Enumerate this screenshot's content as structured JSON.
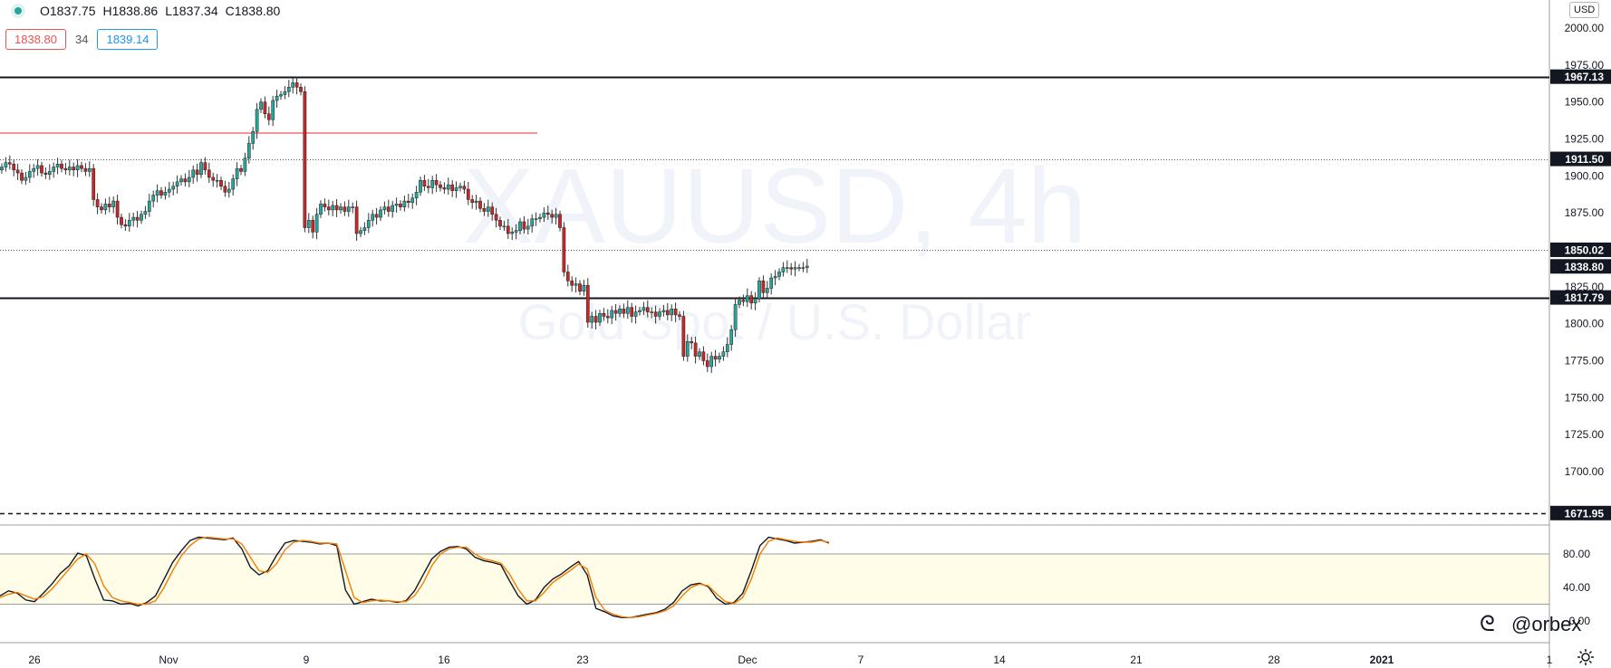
{
  "header": {
    "open": "O1837.75",
    "high": "H1838.86",
    "low": "L1837.34",
    "close": "C1838.80",
    "bid": "1838.80",
    "spread": "34",
    "ask": "1839.14",
    "currency": "USD"
  },
  "watermark": {
    "symbol": "XAUUSD, 4h",
    "name": "Gold Spot / U.S. Dollar"
  },
  "author": "@orbex",
  "colors": {
    "up": "#26a69a",
    "down": "#c62828",
    "kline": "#131722",
    "dline": "#f57c00",
    "band": "#fffde7"
  },
  "chart_data": [
    {
      "type": "candlestick",
      "title": "XAUUSD, 4h",
      "ylim": [
        1660,
        2012
      ],
      "y_ticks": [
        "2000.00",
        "1975.00",
        "1950.00",
        "1925.00",
        "1900.00",
        "1875.00",
        "1850.00",
        "1825.00",
        "1800.00",
        "1775.00",
        "1750.00",
        "1725.00",
        "1700.00"
      ],
      "x_ticks": [
        "26",
        "Nov",
        "9",
        "16",
        "23",
        "Dec",
        "7",
        "14",
        "21",
        "28",
        "2021",
        "1"
      ],
      "series": [
        {
          "name": "price",
          "values": [
            1906,
            1909,
            1908,
            1904,
            1902,
            1897,
            1899,
            1903,
            1905,
            1907,
            1902,
            1901,
            1903,
            1906,
            1908,
            1905,
            1904,
            1906,
            1904,
            1907,
            1905,
            1903,
            1905,
            1884,
            1879,
            1877,
            1881,
            1879,
            1883,
            1872,
            1867,
            1866,
            1870,
            1872,
            1870,
            1874,
            1876,
            1883,
            1887,
            1890,
            1887,
            1889,
            1891,
            1893,
            1896,
            1898,
            1896,
            1899,
            1904,
            1901,
            1909,
            1904,
            1899,
            1897,
            1897,
            1893,
            1889,
            1891,
            1898,
            1905,
            1903,
            1912,
            1922,
            1930,
            1945,
            1950,
            1942,
            1938,
            1951,
            1954,
            1955,
            1957,
            1960,
            1963,
            1960,
            1957,
            1865,
            1870,
            1862,
            1874,
            1881,
            1879,
            1877,
            1880,
            1877,
            1879,
            1876,
            1879,
            1879,
            1861,
            1863,
            1865,
            1870,
            1874,
            1872,
            1877,
            1879,
            1876,
            1880,
            1881,
            1879,
            1883,
            1882,
            1885,
            1889,
            1897,
            1893,
            1892,
            1897,
            1894,
            1892,
            1891,
            1894,
            1890,
            1892,
            1893,
            1891,
            1884,
            1882,
            1883,
            1878,
            1876,
            1879,
            1874,
            1870,
            1866,
            1866,
            1861,
            1862,
            1863,
            1869,
            1864,
            1866,
            1871,
            1871,
            1872,
            1875,
            1874,
            1872,
            1874,
            1865,
            1835,
            1829,
            1826,
            1827,
            1822,
            1826,
            1801,
            1805,
            1801,
            1807,
            1805,
            1804,
            1809,
            1807,
            1810,
            1807,
            1811,
            1805,
            1808,
            1809,
            1811,
            1808,
            1808,
            1805,
            1808,
            1809,
            1806,
            1810,
            1806,
            1805,
            1778,
            1788,
            1787,
            1778,
            1781,
            1775,
            1771,
            1778,
            1776,
            1778,
            1781,
            1786,
            1796,
            1813,
            1816,
            1815,
            1819,
            1814,
            1817,
            1829,
            1821,
            1824,
            1831,
            1832,
            1835,
            1838,
            1838,
            1837,
            1838,
            1838,
            1838,
            1839
          ]
        }
      ],
      "hlines": [
        {
          "value": 1967.13,
          "label": "1967.13",
          "style": "solid"
        },
        {
          "value": 1911.5,
          "label": "1911.50",
          "style": "dotted"
        },
        {
          "value": 1850.02,
          "label": "1850.02",
          "style": "dotted"
        },
        {
          "value": 1838.8,
          "label": "1838.80",
          "style": "current"
        },
        {
          "value": 1817.79,
          "label": "1817.79",
          "style": "solid"
        },
        {
          "value": 1671.95,
          "label": "1671.95",
          "style": "dashed"
        }
      ],
      "trend_line": {
        "value": 1929
      }
    },
    {
      "type": "line",
      "title": "Stochastic",
      "ylim": [
        -2,
        104
      ],
      "y_ticks": [
        "80.00",
        "40.00",
        "0.00"
      ],
      "band": [
        20,
        80
      ],
      "series": [
        {
          "name": "%K",
          "values": [
            30,
            36,
            33,
            25,
            23,
            33,
            44,
            57,
            66,
            81,
            78,
            50,
            25,
            24,
            20,
            21,
            18,
            22,
            30,
            50,
            70,
            84,
            96,
            100,
            99,
            98,
            97,
            99,
            86,
            64,
            55,
            60,
            78,
            93,
            96,
            95,
            94,
            92,
            93,
            90,
            37,
            20,
            23,
            26,
            24,
            24,
            22,
            24,
            36,
            55,
            74,
            83,
            88,
            89,
            86,
            76,
            72,
            70,
            67,
            48,
            30,
            20,
            25,
            40,
            50,
            56,
            64,
            71,
            55,
            15,
            11,
            6,
            4,
            4,
            6,
            8,
            10,
            14,
            22,
            36,
            43,
            45,
            41,
            27,
            20,
            22,
            33,
            60,
            90,
            100,
            98,
            96,
            93,
            94,
            95,
            97,
            93
          ]
        },
        {
          "name": "%D",
          "values": [
            28,
            32,
            34,
            30,
            26,
            29,
            38,
            50,
            62,
            74,
            80,
            68,
            42,
            28,
            24,
            22,
            20,
            20,
            24,
            40,
            60,
            78,
            90,
            98,
            100,
            99,
            98,
            98,
            92,
            76,
            60,
            58,
            68,
            85,
            94,
            96,
            95,
            93,
            93,
            92,
            60,
            28,
            22,
            24,
            25,
            24,
            23,
            23,
            30,
            45,
            66,
            80,
            86,
            88,
            88,
            80,
            74,
            72,
            69,
            56,
            38,
            24,
            24,
            34,
            46,
            53,
            60,
            68,
            62,
            28,
            13,
            8,
            5,
            4,
            5,
            7,
            9,
            12,
            18,
            30,
            40,
            44,
            42,
            32,
            23,
            21,
            28,
            50,
            80,
            95,
            99,
            97,
            95,
            94,
            94,
            96,
            94
          ]
        }
      ]
    }
  ]
}
